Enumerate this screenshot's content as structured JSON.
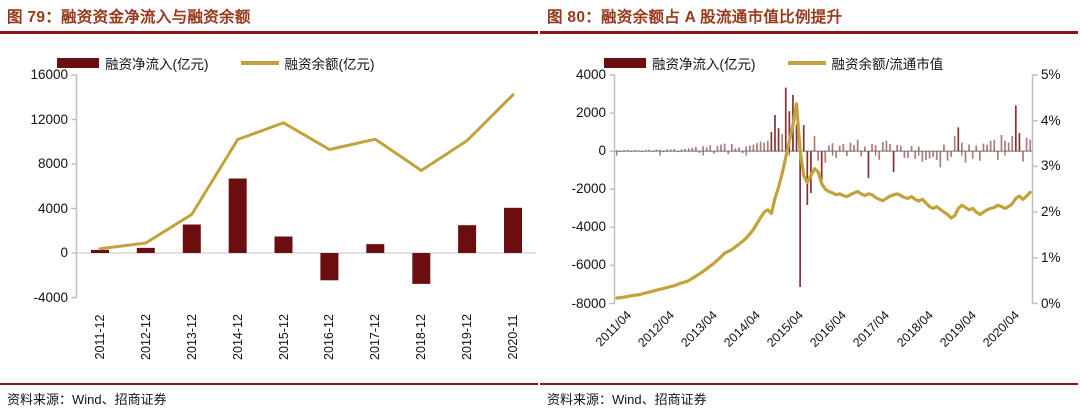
{
  "colors": {
    "bar_maroon": "#6C0E10",
    "line_gold": "#C3A23C",
    "title_brown": "#97391C",
    "rule_red": "#8A1510",
    "axis_light": "#BFBFBF",
    "axis_mid": "#9C9C9C",
    "tick_dark": "#737373",
    "grid_light": "#D9D9D9"
  },
  "left_panel": {
    "title": "图 79：融资资金净流入与融资余额",
    "legend": [
      {
        "label": "融资净流入(亿元)",
        "swatch": "bar-swatch"
      },
      {
        "label": "融资余额(亿元)",
        "swatch": "line-swatch"
      }
    ],
    "source": "资料来源：Wind、招商证券"
  },
  "right_panel": {
    "title": "图 80：融资余额占 A 股流通市值比例提升",
    "legend": [
      {
        "label": "融资净流入(亿元)",
        "swatch": "bar-swatch"
      },
      {
        "label": "融资余额/流通市值",
        "swatch": "line-swatch"
      }
    ],
    "source": "资料来源：Wind、招商证券"
  },
  "chart_data": [
    {
      "type": "bar",
      "combo": "bar+line",
      "title": "融资资金净流入与融资余额",
      "categories": [
        "2011-12",
        "2012-12",
        "2013-12",
        "2014-12",
        "2015-12",
        "2016-12",
        "2017-12",
        "2018-12",
        "2019-12",
        "2020-11"
      ],
      "series": [
        {
          "name": "融资净流入(亿元)",
          "type": "bar",
          "values": [
            280,
            460,
            2560,
            6700,
            1480,
            -2450,
            800,
            -2780,
            2500,
            4060
          ]
        },
        {
          "name": "融资余额(亿元)",
          "type": "line",
          "values": [
            380,
            900,
            3470,
            10200,
            11700,
            9300,
            10230,
            7420,
            10100,
            14220
          ]
        }
      ],
      "ylim": [
        -4000,
        16000
      ],
      "yticks": [
        16000,
        12000,
        8000,
        4000,
        0,
        -4000
      ],
      "legend_position": "top",
      "grid": "zero-line-only"
    },
    {
      "type": "bar",
      "combo": "bar+line-dual-axis",
      "title": "融资余额占A股流通市值比例提升",
      "x_monthly_start": "2011/04",
      "x_monthly_end": "2020/11",
      "xtick_labels": [
        "2011/04",
        "2012/04",
        "2013/04",
        "2014/04",
        "2015/04",
        "2016/04",
        "2017/04",
        "2018/04",
        "2019/04",
        "2020/04"
      ],
      "left_ylim": [
        -8000,
        4000
      ],
      "left_yticks": [
        4000,
        2000,
        0,
        -2000,
        -4000,
        -6000,
        -8000
      ],
      "right_ylim_pct": [
        0,
        5
      ],
      "right_yticks": [
        "5%",
        "4%",
        "3%",
        "2%",
        "1%",
        "0%"
      ],
      "legend_position": "top",
      "series": [
        {
          "name": "融资净流入(亿元)",
          "type": "bar",
          "axis": "left",
          "values": [
            40,
            -25,
            50,
            65,
            -30,
            55,
            45,
            -35,
            60,
            70,
            -40,
            85,
            60,
            -50,
            95,
            80,
            110,
            -45,
            90,
            120,
            150,
            180,
            220,
            -90,
            260,
            200,
            310,
            -120,
            280,
            350,
            400,
            -150,
            380,
            150,
            200,
            -100,
            250,
            300,
            350,
            420,
            500,
            450,
            550,
            1000,
            1900,
            1210,
            900,
            3340,
            2100,
            2960,
            1400,
            -7130,
            1370,
            -2830,
            -2200,
            800,
            -500,
            -1800,
            -600,
            300,
            420,
            -350,
            280,
            380,
            -250,
            450,
            320,
            600,
            -280,
            250,
            -1400,
            380,
            320,
            -450,
            480,
            550,
            380,
            -1100,
            330,
            280,
            -350,
            -350,
            280,
            -400,
            250,
            -550,
            -450,
            -380,
            -300,
            -450,
            -850,
            350,
            -500,
            -300,
            800,
            1250,
            450,
            -600,
            350,
            -400,
            300,
            -500,
            400,
            350,
            550,
            600,
            -450,
            850,
            550,
            450,
            800,
            2400,
            950,
            -550,
            700,
            600
          ]
        },
        {
          "name": "融资余额/流通市值",
          "type": "line",
          "axis": "right",
          "unit": "%",
          "values": [
            0.12,
            0.13,
            0.14,
            0.15,
            0.17,
            0.18,
            0.19,
            0.21,
            0.23,
            0.25,
            0.27,
            0.29,
            0.31,
            0.33,
            0.35,
            0.37,
            0.39,
            0.42,
            0.45,
            0.47,
            0.5,
            0.55,
            0.6,
            0.65,
            0.7,
            0.76,
            0.82,
            0.88,
            0.95,
            1.02,
            1.1,
            1.14,
            1.18,
            1.24,
            1.3,
            1.36,
            1.43,
            1.52,
            1.62,
            1.75,
            1.88,
            2.0,
            2.05,
            1.97,
            2.3,
            2.55,
            2.85,
            3.2,
            3.55,
            3.9,
            4.37,
            3.35,
            2.8,
            2.65,
            2.8,
            2.95,
            2.88,
            2.62,
            2.5,
            2.45,
            2.42,
            2.38,
            2.4,
            2.36,
            2.34,
            2.38,
            2.42,
            2.45,
            2.4,
            2.36,
            2.4,
            2.38,
            2.32,
            2.28,
            2.25,
            2.3,
            2.35,
            2.38,
            2.4,
            2.36,
            2.32,
            2.3,
            2.34,
            2.28,
            2.24,
            2.28,
            2.2,
            2.12,
            2.08,
            2.12,
            2.06,
            2.0,
            1.95,
            1.87,
            1.92,
            2.08,
            2.15,
            2.1,
            2.05,
            2.08,
            2.0,
            1.95,
            2.0,
            2.05,
            2.08,
            2.1,
            2.15,
            2.12,
            2.08,
            2.12,
            2.18,
            2.3,
            2.35,
            2.28,
            2.35,
            2.43
          ]
        }
      ]
    }
  ]
}
